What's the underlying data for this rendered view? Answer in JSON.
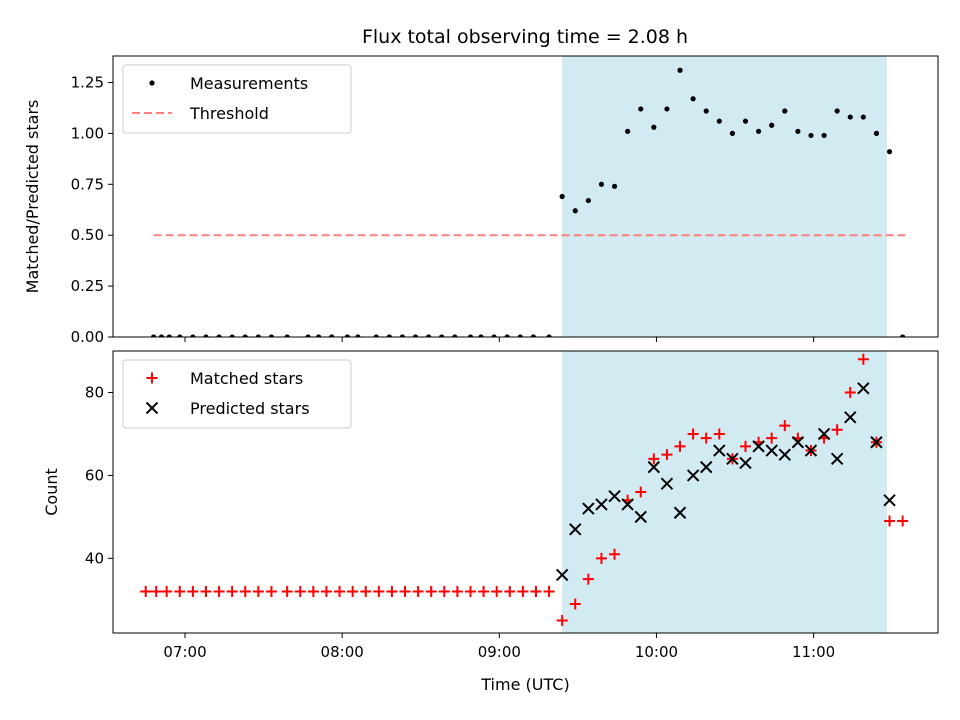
{
  "title": "Flux total observing time = 2.08 h",
  "colors": {
    "shade": "#add8e6",
    "matched": "#ff0000",
    "predicted": "#000000",
    "threshold": "#ff7f7f",
    "measurement": "#000000"
  },
  "chart_data": [
    {
      "type": "scatter",
      "ylabel": "Matched/Predicted stars",
      "ylim": [
        0,
        1.38
      ],
      "yticks": [
        "0.00",
        "0.25",
        "0.50",
        "0.75",
        "1.00",
        "1.25"
      ],
      "legend_position": "upper-left",
      "shaded_interval": [
        "09:24",
        "11:28"
      ],
      "threshold": {
        "name": "Threshold",
        "y": 0.5,
        "x_range": [
          "06:48",
          "11:35"
        ]
      },
      "series": [
        {
          "name": "Measurements",
          "x": [
            "06:48",
            "06:51",
            "06:54",
            "06:58",
            "07:03",
            "07:08",
            "07:13",
            "07:18",
            "07:23",
            "07:28",
            "07:33",
            "07:39",
            "07:47",
            "07:51",
            "07:56",
            "08:02",
            "08:06",
            "08:13",
            "08:18",
            "08:23",
            "08:28",
            "08:33",
            "08:38",
            "08:43",
            "08:49",
            "08:53",
            "08:58",
            "09:03",
            "09:08",
            "09:13",
            "09:19",
            "09:24",
            "09:29",
            "09:34",
            "09:39",
            "09:44",
            "09:49",
            "09:54",
            "09:59",
            "10:04",
            "10:09",
            "10:14",
            "10:19",
            "10:24",
            "10:29",
            "10:34",
            "10:39",
            "10:44",
            "10:49",
            "10:54",
            "10:59",
            "11:04",
            "11:09",
            "11:14",
            "11:19",
            "11:24",
            "11:29",
            "11:34"
          ],
          "y": [
            0,
            0,
            0,
            0,
            0,
            0,
            0,
            0,
            0,
            0,
            0,
            0,
            0,
            0,
            0,
            0,
            0,
            0,
            0,
            0,
            0,
            0,
            0,
            0,
            0,
            0,
            0,
            0,
            0,
            0,
            0,
            0.69,
            0.62,
            0.67,
            0.75,
            0.74,
            1.01,
            1.12,
            1.03,
            1.12,
            1.31,
            1.17,
            1.11,
            1.06,
            1.0,
            1.06,
            1.01,
            1.04,
            1.11,
            1.01,
            0.99,
            0.99,
            1.11,
            1.08,
            1.08,
            1.0,
            0.91,
            0
          ]
        }
      ]
    },
    {
      "type": "scatter",
      "xlabel": "Time (UTC)",
      "ylabel": "Count",
      "ylim": [
        22,
        90
      ],
      "yticks": [
        "40",
        "60",
        "80"
      ],
      "xticks": [
        "07:00",
        "08:00",
        "09:00",
        "10:00",
        "11:00"
      ],
      "legend_position": "upper-left",
      "shaded_interval": [
        "09:24",
        "11:28"
      ],
      "series": [
        {
          "name": "Matched stars",
          "marker": "+",
          "x": [
            "06:45",
            "06:49",
            "06:53",
            "06:58",
            "07:03",
            "07:08",
            "07:13",
            "07:18",
            "07:23",
            "07:28",
            "07:33",
            "07:39",
            "07:44",
            "07:49",
            "07:54",
            "07:59",
            "08:04",
            "08:09",
            "08:14",
            "08:19",
            "08:24",
            "08:29",
            "08:34",
            "08:39",
            "08:44",
            "08:49",
            "08:54",
            "08:59",
            "09:04",
            "09:09",
            "09:14",
            "09:19",
            "09:24",
            "09:29",
            "09:34",
            "09:39",
            "09:44",
            "09:49",
            "09:54",
            "09:59",
            "10:04",
            "10:09",
            "10:14",
            "10:19",
            "10:24",
            "10:29",
            "10:34",
            "10:39",
            "10:44",
            "10:49",
            "10:54",
            "10:59",
            "11:04",
            "11:09",
            "11:14",
            "11:19",
            "11:24",
            "11:29",
            "11:34"
          ],
          "y": [
            32,
            32,
            32,
            32,
            32,
            32,
            32,
            32,
            32,
            32,
            32,
            32,
            32,
            32,
            32,
            32,
            32,
            32,
            32,
            32,
            32,
            32,
            32,
            32,
            32,
            32,
            32,
            32,
            32,
            32,
            32,
            32,
            25,
            29,
            35,
            40,
            41,
            54,
            56,
            64,
            65,
            67,
            70,
            69,
            70,
            64,
            67,
            68,
            69,
            72,
            69,
            66,
            69,
            71,
            80,
            88,
            68,
            49,
            49
          ]
        },
        {
          "name": "Predicted stars",
          "marker": "x",
          "x": [
            "09:24",
            "09:29",
            "09:34",
            "09:39",
            "09:44",
            "09:49",
            "09:54",
            "09:59",
            "10:04",
            "10:09",
            "10:14",
            "10:19",
            "10:24",
            "10:29",
            "10:34",
            "10:39",
            "10:44",
            "10:49",
            "10:54",
            "10:59",
            "11:04",
            "11:09",
            "11:14",
            "11:19",
            "11:24",
            "11:29"
          ],
          "y": [
            36,
            47,
            52,
            53,
            55,
            53,
            50,
            62,
            58,
            51,
            60,
            62,
            66,
            64,
            63,
            67,
            66,
            65,
            68,
            66,
            70,
            64,
            74,
            81,
            68,
            54
          ]
        }
      ]
    }
  ]
}
